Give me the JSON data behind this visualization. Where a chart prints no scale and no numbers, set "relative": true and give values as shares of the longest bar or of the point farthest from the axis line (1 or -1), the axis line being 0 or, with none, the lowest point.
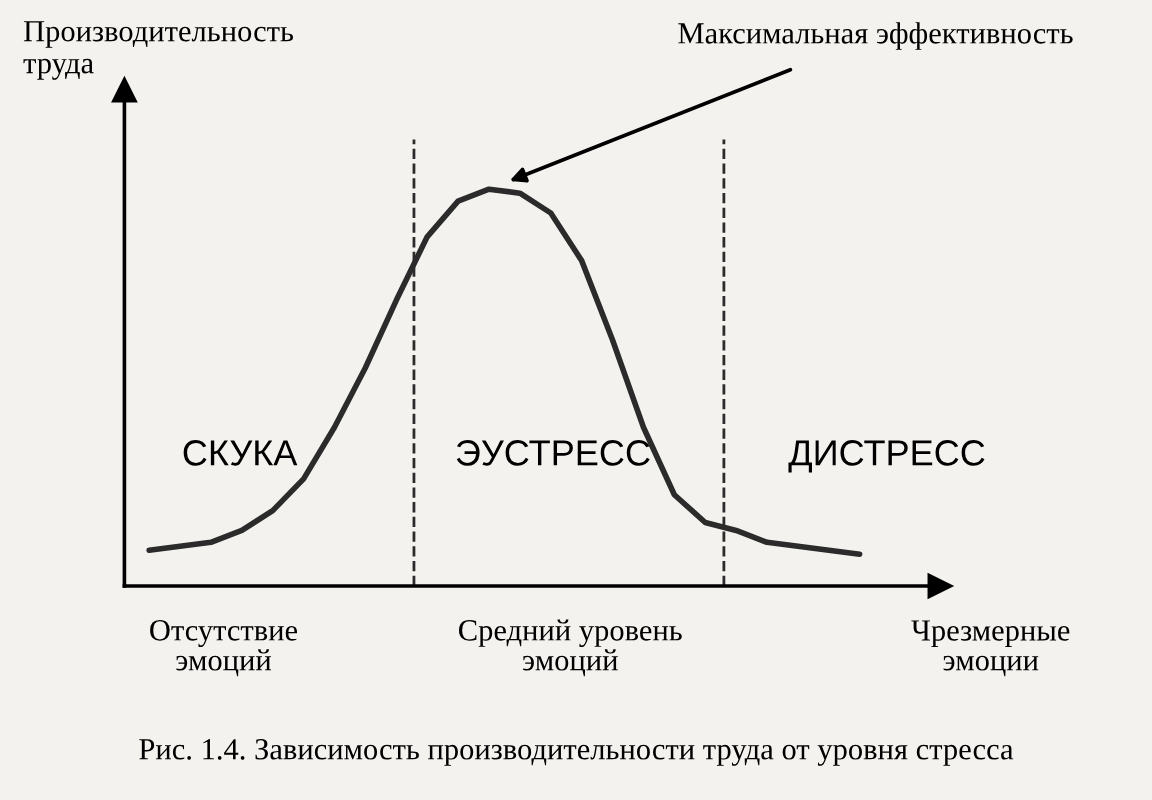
{
  "chart_data": {
    "type": "line",
    "relative": true,
    "line_style": "solid",
    "ylabel": "Производительность\nтруда",
    "categories": [
      null,
      null,
      null,
      null,
      null,
      null,
      null,
      null,
      null,
      null,
      null,
      null,
      null,
      null,
      null,
      null,
      null,
      null,
      null,
      null,
      null,
      null,
      null,
      null
    ],
    "series": [
      {
        "color": "#2b2b2b",
        "values": [
          0.09,
          0.1,
          0.11,
          0.14,
          0.19,
          0.27,
          0.4,
          0.55,
          0.72,
          0.88,
          0.97,
          1,
          0.99,
          0.94,
          0.82,
          0.62,
          0.4,
          0.23,
          0.16,
          0.14,
          0.11,
          0.1,
          0.09,
          0.08
        ]
      }
    ],
    "annotations": [
      "Максимальная эффективность",
      "СКУКА",
      "ЭУСТРЕСС",
      "ДИСТРЕСС",
      "Отсутствие\nэмоций",
      "Средний уровень\nэмоций",
      "Чрезмерные\nэмоции",
      "Рис. 1.4. Зависимость производительности труда от уровня стресса"
    ]
  }
}
